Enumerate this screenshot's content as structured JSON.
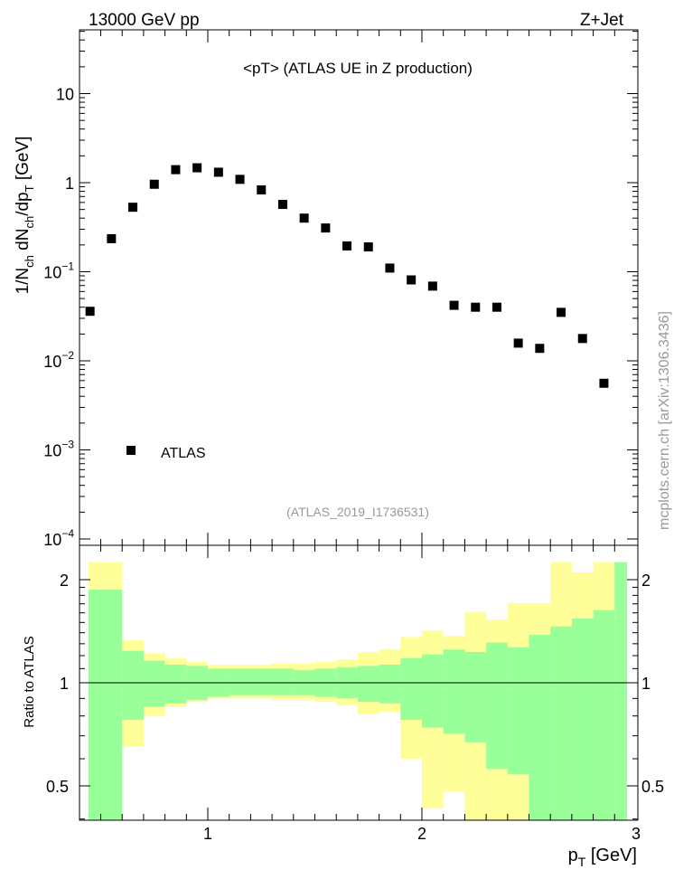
{
  "header": {
    "left": "13000 GeV pp",
    "right": "Z+Jet"
  },
  "watermark": "mcplots.cern.ch [arXiv:1306.3436]",
  "colors": {
    "data_marker": "#000000",
    "band_inner": "#99ff99",
    "band_outer": "#ffff99",
    "ref_line": "#000000"
  },
  "chart_data": [
    {
      "type": "scatter",
      "title": "<pT> (ATLAS UE in Z production)",
      "subtitle": "(ATLAS_2019_I1736531)",
      "ylabel": "1/N_ch dN_ch/dp_T [GeV]",
      "ylabel_parts": {
        "main": "1/N",
        "s1": "ch",
        "m2": " dN",
        "s2": "ch",
        "m3": "/dp",
        "s3": "T",
        "m4": " [GeV]"
      },
      "yscale": "log",
      "ylim": [
        0.0001,
        50
      ],
      "xlim": [
        0.4,
        3.0
      ],
      "yticks": [
        {
          "value": 10,
          "label": "10"
        },
        {
          "value": 1,
          "label": "1"
        },
        {
          "value": 0.1,
          "base": "10",
          "exp": "−1"
        },
        {
          "value": 0.01,
          "base": "10",
          "exp": "−2"
        },
        {
          "value": 0.001,
          "base": "10",
          "exp": "−3"
        },
        {
          "value": 0.0001,
          "base": "10",
          "exp": "−4"
        }
      ],
      "legend": {
        "position": "lower-left",
        "entries": [
          "ATLAS"
        ]
      },
      "series": [
        {
          "name": "ATLAS",
          "marker": "square",
          "x": [
            0.45,
            0.55,
            0.65,
            0.75,
            0.85,
            0.95,
            1.05,
            1.15,
            1.25,
            1.35,
            1.45,
            1.55,
            1.65,
            1.75,
            1.85,
            1.95,
            2.05,
            2.15,
            2.25,
            2.35,
            2.45,
            2.55,
            2.65,
            2.75,
            2.85
          ],
          "y": [
            0.036,
            0.235,
            0.53,
            0.96,
            1.4,
            1.47,
            1.31,
            1.09,
            0.83,
            0.57,
            0.4,
            0.31,
            0.195,
            0.19,
            0.11,
            0.081,
            0.069,
            0.042,
            0.04,
            0.04,
            0.0158,
            0.0138,
            0.035,
            0.0178,
            0.0056
          ]
        }
      ]
    },
    {
      "type": "area",
      "ylabel": "Ratio to ATLAS",
      "xlabel": "p_T [GeV]",
      "xlabel_parts": {
        "main": "p",
        "sub": "T",
        "rest": " [GeV]"
      },
      "xlim": [
        0.4,
        3.0
      ],
      "ylim": [
        0.35,
        2.25
      ],
      "yticks": [
        0.5,
        1,
        2
      ],
      "xticks": [
        1,
        2,
        3
      ],
      "reference_line": 1,
      "bins": [
        0.4,
        0.5,
        0.6,
        0.7,
        0.8,
        0.9,
        1.0,
        1.1,
        1.2,
        1.3,
        1.4,
        1.5,
        1.6,
        1.7,
        1.8,
        1.9,
        2.0,
        2.1,
        2.2,
        2.3,
        2.4,
        2.5,
        2.6,
        2.7,
        2.8,
        2.9,
        3.0
      ],
      "inner_band": {
        "upper": [
          1.87,
          1.87,
          1.24,
          1.16,
          1.13,
          1.12,
          1.1,
          1.1,
          1.1,
          1.1,
          1.09,
          1.1,
          1.11,
          1.12,
          1.13,
          1.18,
          1.21,
          1.25,
          1.23,
          1.31,
          1.27,
          1.38,
          1.46,
          1.54,
          1.63,
          2.25
        ],
        "lower": [
          0.35,
          0.35,
          0.78,
          0.85,
          0.87,
          0.89,
          0.91,
          0.92,
          0.92,
          0.92,
          0.92,
          0.91,
          0.9,
          0.88,
          0.87,
          0.78,
          0.74,
          0.71,
          0.67,
          0.56,
          0.54,
          0.35,
          0.35,
          0.35,
          0.35,
          0.35
        ]
      },
      "outer_band": {
        "upper": [
          2.25,
          2.25,
          1.33,
          1.22,
          1.18,
          1.15,
          1.13,
          1.13,
          1.13,
          1.14,
          1.14,
          1.15,
          1.17,
          1.23,
          1.25,
          1.36,
          1.42,
          1.37,
          1.61,
          1.53,
          1.71,
          1.71,
          2.25,
          2.1,
          2.25,
          2.25
        ],
        "lower": [
          0.35,
          0.35,
          0.65,
          0.8,
          0.85,
          0.88,
          0.9,
          0.9,
          0.9,
          0.89,
          0.89,
          0.88,
          0.86,
          0.81,
          0.82,
          0.6,
          0.43,
          0.48,
          0.35,
          0.35,
          0.35,
          0.35,
          0.35,
          0.35,
          0.35,
          0.35
        ]
      }
    }
  ]
}
